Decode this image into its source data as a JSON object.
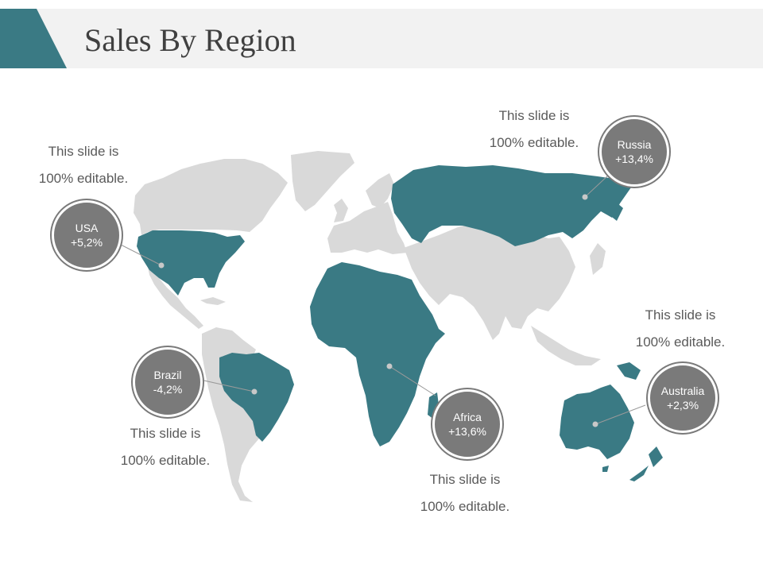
{
  "title": "Sales By Region",
  "colors": {
    "accent": "#3a7a84",
    "land": "#d9d9d9",
    "bubble": "#7a7a7a",
    "header_bg": "#f2f2f2"
  },
  "regions": [
    {
      "name": "USA",
      "value": "+5,2%"
    },
    {
      "name": "Russia",
      "value": "+13,4%"
    },
    {
      "name": "Brazil",
      "value": "-4,2%"
    },
    {
      "name": "Africa",
      "value": "+13,6%"
    },
    {
      "name": "Australia",
      "value": "+2,3%"
    }
  ],
  "notes": [
    {
      "line1": "This slide is",
      "line2": "100% editable."
    },
    {
      "line1": "This slide is",
      "line2": "100% editable."
    },
    {
      "line1": "This slide is",
      "line2": "100% editable."
    },
    {
      "line1": "This slide is",
      "line2": "100% editable."
    },
    {
      "line1": "This slide is",
      "line2": "100% editable."
    }
  ]
}
